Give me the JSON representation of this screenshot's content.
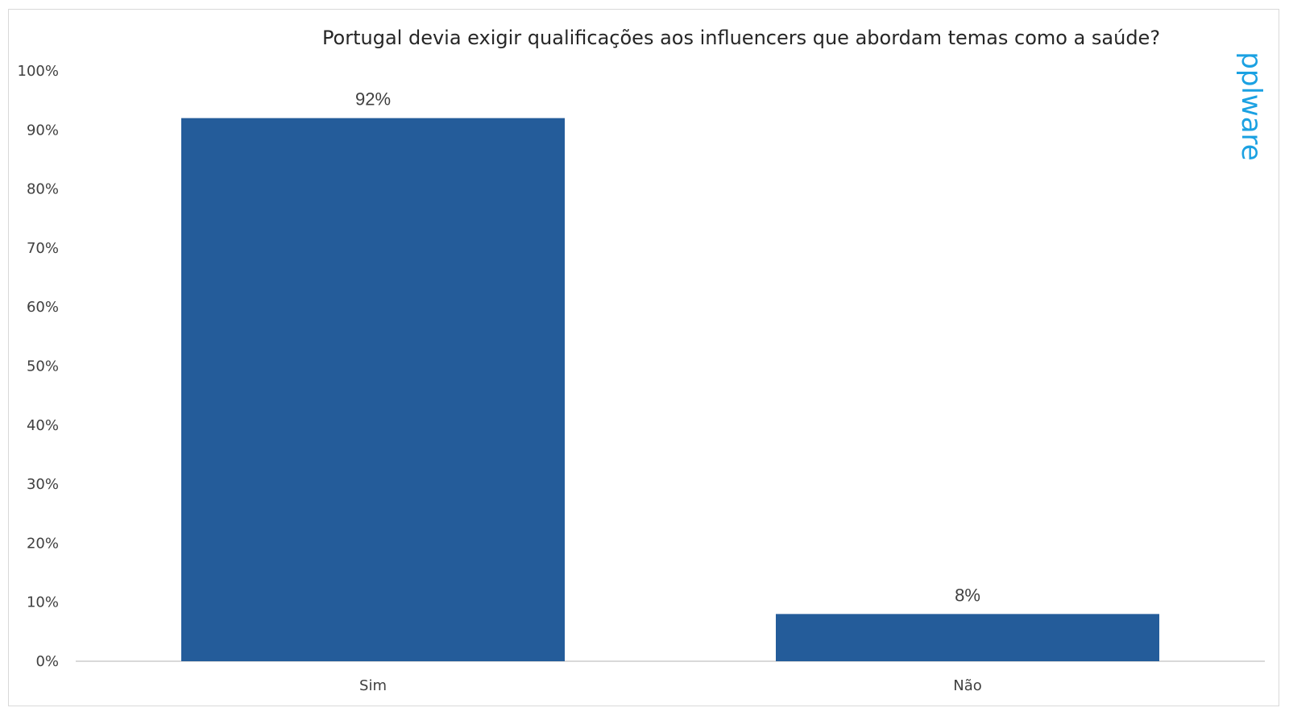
{
  "chart_data": {
    "type": "bar",
    "title": "Portugal devia exigir qualificações aos influencers que abordam temas como a saúde?",
    "categories": [
      "Sim",
      "Não"
    ],
    "values": [
      92,
      8
    ],
    "data_labels": [
      "92%",
      "8%"
    ],
    "ylim": [
      0,
      100
    ],
    "yticks": [
      "0%",
      "10%",
      "20%",
      "30%",
      "40%",
      "50%",
      "60%",
      "70%",
      "80%",
      "90%",
      "100%"
    ],
    "xlabel": "",
    "ylabel": "",
    "grid": false,
    "legend": "none",
    "bar_color": "#245c9a"
  },
  "watermark": {
    "text": "pplware",
    "color": "#1ba1e2"
  }
}
